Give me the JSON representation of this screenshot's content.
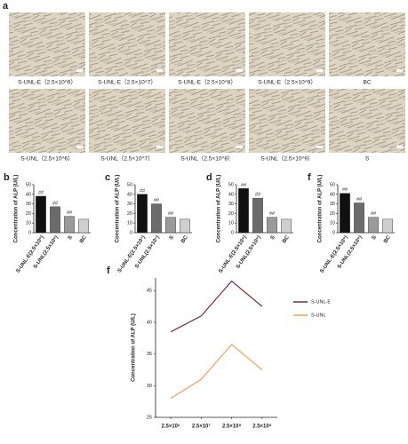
{
  "panel_a": {
    "label": "a",
    "captions": [
      [
        "S-UNL-E（2.5×10^6）",
        "S-UNL-E（2.5×10^7）",
        "S-UNL-E（2.5×10^8）",
        "S-UNL-E（2.5×10^9）",
        "BC"
      ],
      [
        "S-UNL（2.5×10^6）",
        "S-UNL（2.5×10^7）",
        "S-UNL（2.5×10^8）",
        "S-UNL（2.5×10^9）",
        "S"
      ]
    ]
  },
  "chart_data": [
    {
      "type": "bar",
      "panel": "b",
      "y_label": "Concentration of ALP (U/L)",
      "categories": [
        "S-UNL-E(2.5×10⁶)",
        "S-UNL(2.5×10⁶)",
        "S",
        "BC"
      ],
      "values": [
        38,
        27,
        17,
        14
      ],
      "annotations": [
        "##",
        "##",
        "##"
      ],
      "colors": [
        "#111111",
        "#6b6b6b",
        "#9a9a9a",
        "#cfcfcf"
      ],
      "ylim": [
        0,
        50
      ],
      "yticks": [
        0,
        10,
        20,
        30,
        40,
        50
      ]
    },
    {
      "type": "bar",
      "panel": "c",
      "y_label": "Concentration of ALP (U/L)",
      "categories": [
        "S-UNL-E(2.5×10⁷)",
        "S-UNL(2.5×10⁷)",
        "S",
        "BC"
      ],
      "values": [
        40,
        30,
        16,
        14
      ],
      "annotations": [
        "##",
        "##",
        "##"
      ],
      "colors": [
        "#111111",
        "#6b6b6b",
        "#9a9a9a",
        "#cfcfcf"
      ],
      "ylim": [
        0,
        50
      ],
      "yticks": [
        0,
        10,
        20,
        30,
        40,
        50
      ]
    },
    {
      "type": "bar",
      "panel": "d",
      "y_label": "Concentration of ALP (U/L)",
      "categories": [
        "S-UNL-E(2.5×10⁸)",
        "S-UNL(2.5×10⁸)",
        "S",
        "BC"
      ],
      "values": [
        46,
        36,
        16,
        14
      ],
      "annotations": [
        "##",
        "##",
        "##"
      ],
      "colors": [
        "#111111",
        "#6b6b6b",
        "#9a9a9a",
        "#cfcfcf"
      ],
      "ylim": [
        0,
        50
      ],
      "yticks": [
        0,
        10,
        20,
        30,
        40,
        50
      ]
    },
    {
      "type": "bar",
      "panel": "f",
      "y_label": "Concentration of ALP (U/L)",
      "categories": [
        "S-UNL-E(2.5×10⁹)",
        "S-UNL(2.5×10⁹)",
        "S",
        "BC"
      ],
      "values": [
        41,
        31,
        16,
        14
      ],
      "annotations": [
        "##",
        "##",
        "##"
      ],
      "colors": [
        "#111111",
        "#6b6b6b",
        "#9a9a9a",
        "#cfcfcf"
      ],
      "ylim": [
        0,
        50
      ],
      "yticks": [
        0,
        10,
        20,
        30,
        40,
        50
      ]
    },
    {
      "type": "line",
      "panel": "f",
      "y_label": "Concentration of ALP (U/L)",
      "categories": [
        "2.5×10⁶",
        "2.5×10⁷",
        "2.5×10⁸",
        "2.5×10⁹"
      ],
      "series": [
        {
          "name": "S-UNL-E",
          "color": "#7a2b3b",
          "values": [
            38.5,
            41,
            46.5,
            42.5
          ]
        },
        {
          "name": "S-UNL",
          "color": "#f0a05a",
          "values": [
            28,
            31,
            36.5,
            32.5
          ]
        }
      ],
      "ylim": [
        25,
        47
      ],
      "yticks": [
        25,
        30,
        35,
        40,
        45
      ],
      "legend": "upper right"
    }
  ]
}
